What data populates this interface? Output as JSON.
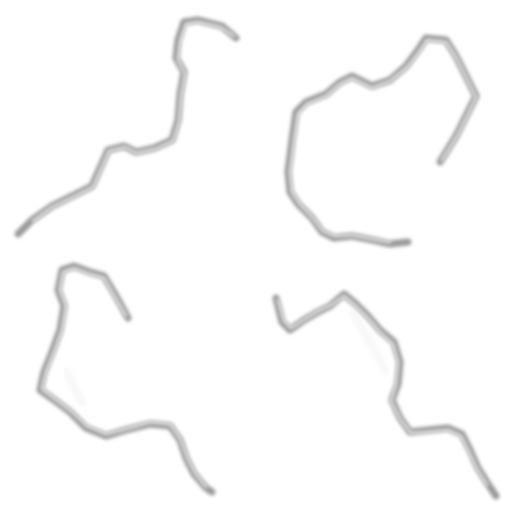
{
  "scene": {
    "background": "#ffffff",
    "crack_color": "#9a9a9a",
    "crack_highlight": "#ececec",
    "cracks": [
      {
        "name": "crack-top-left"
      },
      {
        "name": "crack-top-right"
      },
      {
        "name": "crack-bottom-left"
      },
      {
        "name": "crack-bottom-right"
      }
    ]
  }
}
